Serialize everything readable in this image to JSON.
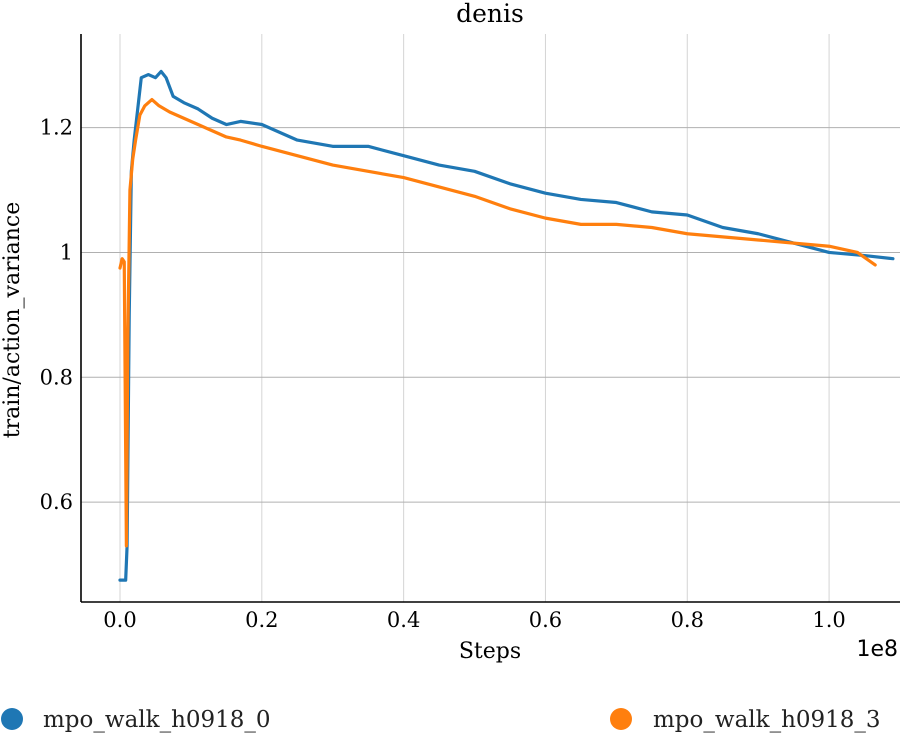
{
  "chart_data": {
    "type": "line",
    "title": "denis",
    "xlabel": "Steps",
    "ylabel": "train/action_variance",
    "x_offset_label": "1e8",
    "xlim": [
      -0.055,
      1.1
    ],
    "ylim": [
      0.44,
      1.35
    ],
    "x_ticks": [
      0.0,
      0.2,
      0.4,
      0.6,
      0.8,
      1.0
    ],
    "x_tick_labels": [
      "0.0",
      "0.2",
      "0.4",
      "0.6",
      "0.8",
      "1.0"
    ],
    "y_ticks": [
      0.6,
      0.8,
      1.0,
      1.2
    ],
    "y_tick_labels": [
      "0.6",
      "0.8",
      "1",
      "1.2"
    ],
    "grid": true,
    "legend_position": "bottom",
    "series": [
      {
        "name": "mpo_walk_h0918_0",
        "color": "#1f77b4",
        "x": [
          0.0,
          0.008,
          0.01,
          0.013,
          0.016,
          0.02,
          0.025,
          0.03,
          0.04,
          0.05,
          0.058,
          0.065,
          0.075,
          0.09,
          0.11,
          0.13,
          0.15,
          0.17,
          0.2,
          0.25,
          0.3,
          0.35,
          0.4,
          0.45,
          0.5,
          0.55,
          0.6,
          0.65,
          0.7,
          0.75,
          0.8,
          0.85,
          0.9,
          0.95,
          1.0,
          1.05,
          1.09
        ],
        "y": [
          0.475,
          0.475,
          0.53,
          0.9,
          1.13,
          1.18,
          1.23,
          1.28,
          1.285,
          1.28,
          1.29,
          1.28,
          1.25,
          1.24,
          1.23,
          1.215,
          1.205,
          1.21,
          1.205,
          1.18,
          1.17,
          1.17,
          1.155,
          1.14,
          1.13,
          1.11,
          1.095,
          1.085,
          1.08,
          1.065,
          1.06,
          1.04,
          1.03,
          1.015,
          1.0,
          0.995,
          0.99
        ]
      },
      {
        "name": "mpo_walk_h0918_3",
        "color": "#ff7f0e",
        "x": [
          0.0,
          0.003,
          0.006,
          0.009,
          0.011,
          0.014,
          0.018,
          0.022,
          0.028,
          0.035,
          0.045,
          0.055,
          0.07,
          0.09,
          0.11,
          0.13,
          0.15,
          0.17,
          0.2,
          0.25,
          0.3,
          0.35,
          0.4,
          0.45,
          0.5,
          0.55,
          0.6,
          0.65,
          0.7,
          0.75,
          0.8,
          0.85,
          0.9,
          0.95,
          1.0,
          1.04,
          1.065
        ],
        "y": [
          0.975,
          0.99,
          0.985,
          0.53,
          0.86,
          1.1,
          1.15,
          1.18,
          1.22,
          1.235,
          1.245,
          1.235,
          1.225,
          1.215,
          1.205,
          1.195,
          1.185,
          1.18,
          1.17,
          1.155,
          1.14,
          1.13,
          1.12,
          1.105,
          1.09,
          1.07,
          1.055,
          1.045,
          1.045,
          1.04,
          1.03,
          1.025,
          1.02,
          1.015,
          1.01,
          1.0,
          0.98
        ]
      }
    ]
  }
}
